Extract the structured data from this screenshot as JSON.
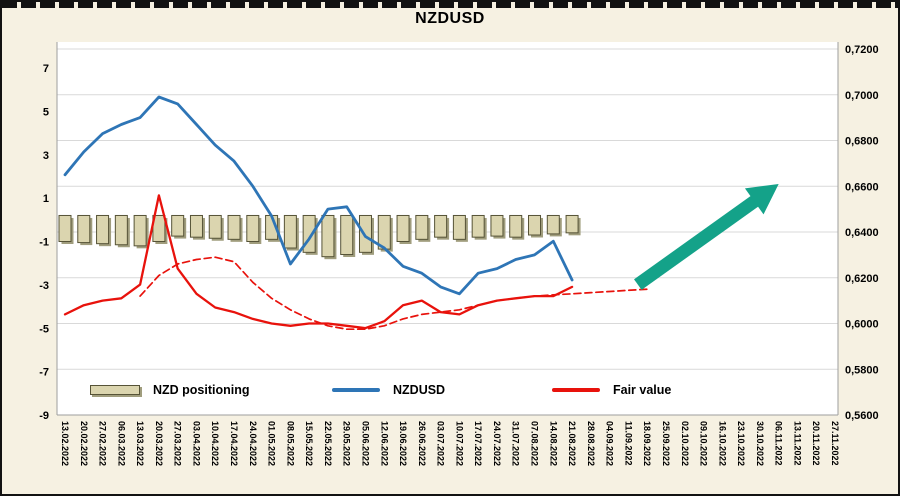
{
  "colors": {
    "background": "#f6f1e2",
    "plot_background": "#ffffff",
    "grid": "#d9d9d9",
    "axis": "#9e9e9e",
    "bar_fill": "#dbd5af",
    "bar_stroke": "#565337",
    "bar_shadow": "#a09d7d",
    "nzdusd_line": "#2e75b6",
    "fair_value_line": "#e8120c",
    "arrow": "#14a289",
    "text": "#000000"
  },
  "legend": [
    {
      "label": "NZD positioning",
      "swatch": "bar"
    },
    {
      "label": "NZDUSD",
      "swatch": "blue-line"
    },
    {
      "label": "Fair value",
      "swatch": "red-line"
    }
  ],
  "chart_data": {
    "type": "combo-bar-line",
    "title": "NZDUSD",
    "legend_position": "bottom-inside",
    "grid": "horizontal",
    "x_labels": [
      "13.02.2022",
      "20.02.2022",
      "27.02.2022",
      "06.03.2022",
      "13.03.2022",
      "20.03.2022",
      "27.03.2022",
      "03.04.2022",
      "10.04.2022",
      "17.04.2022",
      "24.04.2022",
      "01.05.2022",
      "08.05.2022",
      "15.05.2022",
      "22.05.2022",
      "29.05.2022",
      "05.06.2022",
      "12.06.2022",
      "19.06.2022",
      "26.06.2022",
      "03.07.2022",
      "10.07.2022",
      "17.07.2022",
      "24.07.2022",
      "31.07.2022",
      "07.08.2022",
      "14.08.2022",
      "21.08.2022",
      "28.08.2022",
      "04.09.2022",
      "11.09.2022",
      "18.09.2022",
      "25.09.2022",
      "02.10.2022",
      "09.10.2022",
      "16.10.2022",
      "23.10.2022",
      "30.10.2022",
      "06.11.2022",
      "13.11.2022",
      "20.11.2022",
      "27.11.2022"
    ],
    "left_axis": {
      "min": -9,
      "max": 7,
      "ticks": [
        7,
        5,
        3,
        1,
        -1,
        -3,
        -5,
        -7,
        -9
      ]
    },
    "right_axis": {
      "min": 0.56,
      "max": 0.72,
      "ticks": [
        "0,7200",
        "0,7000",
        "0,6800",
        "0,6600",
        "0,6400",
        "0,6200",
        "0,6000",
        "0,5800",
        "0,5600"
      ]
    },
    "series": [
      {
        "name": "NZD positioning",
        "type": "bar",
        "axis": "left",
        "base": 0.2,
        "values": [
          -1.0,
          -1.05,
          -1.1,
          -1.15,
          -1.2,
          -1.0,
          -0.75,
          -0.8,
          -0.85,
          -0.9,
          -1.0,
          -0.9,
          -1.3,
          -1.5,
          -1.7,
          -1.6,
          -1.5,
          -1.35,
          -1.0,
          -0.9,
          -0.8,
          -0.9,
          -0.8,
          -0.75,
          -0.8,
          -0.7,
          -0.65,
          -0.6
        ]
      },
      {
        "name": "NZDUSD",
        "type": "line",
        "axis": "right",
        "color": "#2e75b6",
        "values": [
          0.665,
          0.675,
          0.683,
          0.687,
          0.69,
          0.699,
          0.696,
          0.687,
          0.678,
          0.671,
          0.66,
          0.647,
          0.626,
          0.637,
          0.65,
          0.651,
          0.638,
          0.633,
          0.625,
          0.622,
          0.616,
          0.613,
          0.622,
          0.624,
          0.628,
          0.63,
          0.636,
          0.619
        ]
      },
      {
        "name": "Fair value",
        "type": "line",
        "axis": "right",
        "color": "#e8120c",
        "values": [
          0.604,
          0.608,
          0.61,
          0.611,
          0.617,
          0.656,
          0.624,
          0.613,
          0.607,
          0.605,
          0.602,
          0.6,
          0.599,
          0.6,
          0.6,
          0.599,
          0.598,
          0.601,
          0.608,
          0.61,
          0.605,
          0.604,
          0.608,
          0.61,
          0.611,
          0.612,
          0.612,
          0.616
        ]
      },
      {
        "name": "Fair value forecast",
        "type": "dashed-line",
        "axis": "right",
        "color": "#e8120c",
        "start_index": 4,
        "values": [
          0.612,
          0.621,
          0.626,
          0.628,
          0.629,
          0.627,
          0.618,
          0.611,
          0.606,
          0.602,
          0.599,
          0.5975,
          0.5975,
          0.599,
          0.602,
          0.604,
          0.605,
          0.606,
          0.608,
          0.61,
          0.611,
          0.612,
          0.6125,
          0.613,
          0.6135,
          0.614,
          0.6145,
          0.615
        ]
      }
    ],
    "annotation_arrow": {
      "direction": "up-right",
      "start_index": 30.5,
      "start_value": 0.617,
      "end_index": 38,
      "end_value": 0.661
    }
  }
}
